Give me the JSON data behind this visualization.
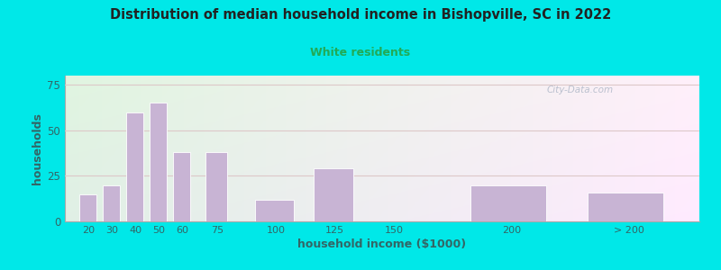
{
  "title": "Distribution of median household income in Bishopville, SC in 2022",
  "subtitle": "White residents",
  "xlabel": "household income ($1000)",
  "ylabel": "households",
  "bar_centers": [
    20,
    30,
    40,
    50,
    60,
    75,
    100,
    125,
    150,
    200,
    250
  ],
  "bar_widths": [
    8,
    8,
    8,
    8,
    8,
    10,
    18,
    18,
    0,
    35,
    35
  ],
  "bar_values": [
    15,
    20,
    60,
    65,
    38,
    38,
    12,
    29,
    0,
    20,
    16
  ],
  "bar_labels": [
    "20",
    "30",
    "40",
    "50",
    "60",
    "75",
    "100",
    "125",
    "150",
    "200",
    "> 200"
  ],
  "bar_color": "#c8b4d4",
  "bar_edge_color": "#ffffff",
  "background_color": "#00e8e8",
  "title_color": "#222222",
  "subtitle_color": "#22aa55",
  "axis_label_color": "#336666",
  "tick_color": "#336666",
  "yticks": [
    0,
    25,
    50,
    75
  ],
  "ylim": [
    0,
    80
  ],
  "xlim": [
    10,
    280
  ],
  "grid_color": "#ddc8c8",
  "watermark": "City-Data.com"
}
